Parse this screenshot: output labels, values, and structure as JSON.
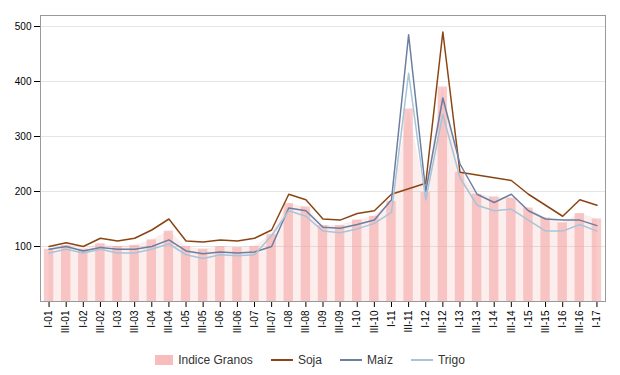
{
  "chart_data": {
    "type": "line",
    "categories": [
      "I-01",
      "III-01",
      "I-02",
      "III-02",
      "I-03",
      "III-03",
      "I-04",
      "III-04",
      "I-05",
      "III-05",
      "I-06",
      "III-06",
      "I-07",
      "III-07",
      "I-08",
      "III-08",
      "I-09",
      "III-09",
      "I-10",
      "III-10",
      "I-11",
      "III-11",
      "I-12",
      "III-12",
      "I-13",
      "III-13",
      "I-14",
      "III-14",
      "I-15",
      "III-15",
      "I-16",
      "III-16",
      "I-17"
    ],
    "series": [
      {
        "name": "Indice Granos",
        "type": "bar",
        "color": "#F4A0A0",
        "values": [
          95,
          102,
          95,
          105,
          100,
          102,
          112,
          128,
          100,
          95,
          100,
          98,
          100,
          122,
          178,
          172,
          138,
          138,
          148,
          155,
          182,
          350,
          198,
          390,
          235,
          195,
          190,
          188,
          170,
          152,
          143,
          160,
          150
        ]
      },
      {
        "name": "Soja",
        "type": "line",
        "color": "#8B4513",
        "values": [
          100,
          107,
          100,
          115,
          110,
          115,
          130,
          150,
          110,
          108,
          112,
          110,
          115,
          130,
          195,
          185,
          150,
          148,
          160,
          165,
          195,
          205,
          215,
          490,
          235,
          230,
          225,
          220,
          195,
          175,
          155,
          185,
          175
        ]
      },
      {
        "name": "Maíz",
        "type": "line",
        "color": "#6B7FA0",
        "values": [
          95,
          100,
          92,
          98,
          95,
          95,
          100,
          112,
          92,
          87,
          90,
          88,
          90,
          100,
          170,
          165,
          135,
          133,
          140,
          148,
          185,
          485,
          200,
          370,
          250,
          195,
          180,
          195,
          165,
          150,
          148,
          148,
          138
        ]
      },
      {
        "name": "Trigo",
        "type": "line",
        "color": "#A8C4D8",
        "values": [
          88,
          95,
          88,
          95,
          88,
          88,
          95,
          105,
          85,
          78,
          85,
          83,
          85,
          120,
          165,
          155,
          128,
          125,
          132,
          142,
          162,
          415,
          185,
          340,
          225,
          175,
          165,
          168,
          148,
          128,
          128,
          140,
          128
        ]
      }
    ],
    "ylim": [
      0,
      520
    ],
    "yticks": [
      100,
      200,
      300,
      400,
      500
    ],
    "grid": true,
    "legend": "bottom"
  }
}
